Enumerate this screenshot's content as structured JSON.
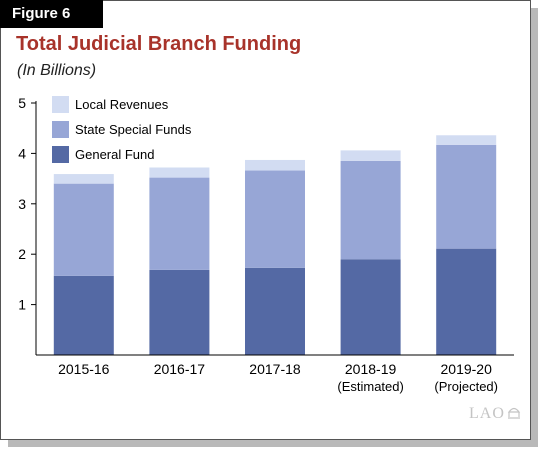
{
  "figure_label": "Figure 6",
  "logo_text": "LAO",
  "chart_data": {
    "type": "bar",
    "stacked": true,
    "title": "Total Judicial Branch Funding",
    "subtitle": "(In Billions)",
    "categories": [
      [
        "2015-16"
      ],
      [
        "2016-17"
      ],
      [
        "2017-18"
      ],
      [
        "2018-19",
        "(Estimated)"
      ],
      [
        "2019-20",
        "(Projected)"
      ]
    ],
    "ylim": [
      0,
      5
    ],
    "yticks": [
      "1",
      "2",
      "3",
      "4",
      "5"
    ],
    "legend_position": "top-left",
    "series": [
      {
        "name": "General Fund",
        "color": "#5469a4",
        "values": [
          1.57,
          1.69,
          1.73,
          1.9,
          2.11
        ]
      },
      {
        "name": "State Special Funds",
        "color": "#97a6d6",
        "values": [
          1.83,
          1.83,
          1.93,
          1.95,
          2.06
        ]
      },
      {
        "name": "Local Revenues",
        "color": "#d2dcf2",
        "values": [
          0.19,
          0.2,
          0.21,
          0.21,
          0.19
        ]
      }
    ]
  }
}
